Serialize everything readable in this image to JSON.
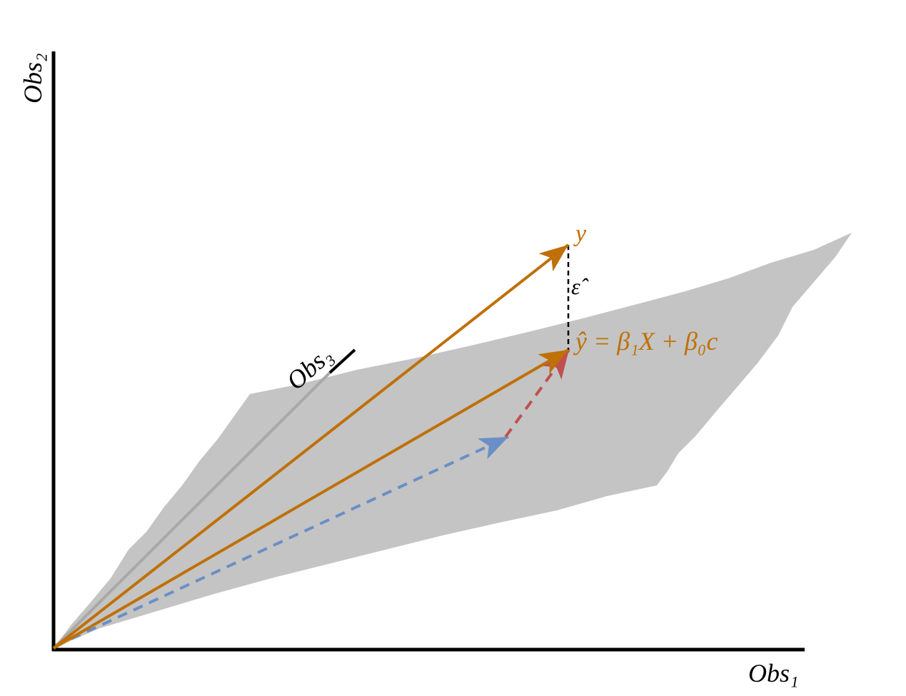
{
  "labels": {
    "obs1": "Obs₁",
    "obs2": "Obs₂",
    "obs3": "Obs₃",
    "y": "y",
    "residual": "ε̂",
    "fitted": "ŷ = β₁X + β₀c"
  }
}
